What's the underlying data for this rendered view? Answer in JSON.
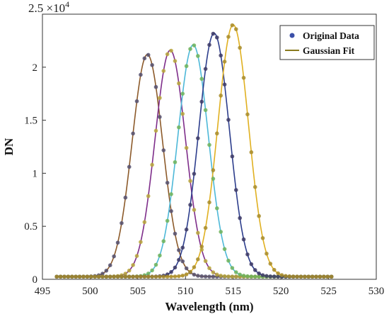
{
  "chart_data": {
    "type": "line",
    "title": "",
    "xlabel": "Wavelength (nm)",
    "ylabel": "DN",
    "xlim": [
      495,
      530
    ],
    "ylim": [
      0,
      25000
    ],
    "xticks": [
      495,
      500,
      505,
      510,
      515,
      520,
      525,
      530
    ],
    "yticks": [
      0,
      0.5,
      1,
      1.5,
      2,
      2.5
    ],
    "y_exponent_base": "×10",
    "y_exponent": "4",
    "grid": false,
    "legend_position": "top-right",
    "legend": [
      {
        "label": "Original Data",
        "marker": "dot",
        "color": "#3b4fa8"
      },
      {
        "label": "Gaussian Fit",
        "marker": "line",
        "color": "#8a7a1e"
      }
    ],
    "series": [
      {
        "peak_wavelength": 506.0,
        "peak_dn": 21200,
        "sigma_nm": 1.6,
        "data_range": [
          496.5,
          525.3
        ],
        "fit_color": "#8c5a2a",
        "point_color": "#55506e"
      },
      {
        "peak_wavelength": 508.4,
        "peak_dn": 21600,
        "sigma_nm": 1.6,
        "data_range": [
          496.5,
          525.3
        ],
        "fit_color": "#7e2d8a",
        "point_color": "#b9a73b"
      },
      {
        "peak_wavelength": 510.8,
        "peak_dn": 22100,
        "sigma_nm": 1.6,
        "data_range": [
          496.5,
          525.3
        ],
        "fit_color": "#4db8d8",
        "point_color": "#6fb35a"
      },
      {
        "peak_wavelength": 513.0,
        "peak_dn": 23200,
        "sigma_nm": 1.6,
        "data_range": [
          496.5,
          525.3
        ],
        "fit_color": "#2c3d8c",
        "point_color": "#3d3a66"
      },
      {
        "peak_wavelength": 515.0,
        "peak_dn": 24000,
        "sigma_nm": 1.6,
        "data_range": [
          496.5,
          525.3
        ],
        "fit_color": "#e0b020",
        "point_color": "#a88c2a"
      }
    ]
  }
}
